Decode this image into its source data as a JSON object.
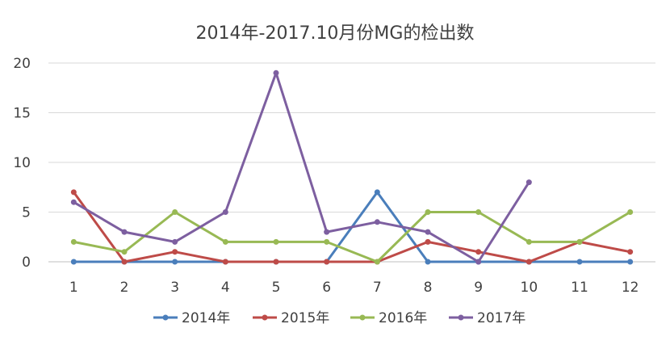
{
  "chart_data": {
    "type": "line",
    "title": "2014年-2017.10月份MG的检出数",
    "xlabel": "",
    "ylabel": "",
    "categories": [
      "1",
      "2",
      "3",
      "4",
      "5",
      "6",
      "7",
      "8",
      "9",
      "10",
      "11",
      "12"
    ],
    "ylim": [
      0,
      20
    ],
    "yticks": [
      0,
      5,
      10,
      15,
      20
    ],
    "grid": true,
    "legend_position": "bottom",
    "series": [
      {
        "name": "2014年",
        "color": "#4a7ebb",
        "values": [
          0,
          0,
          0,
          0,
          0,
          0,
          7,
          0,
          0,
          0,
          0,
          0
        ]
      },
      {
        "name": "2015年",
        "color": "#be4b48",
        "values": [
          7,
          0,
          1,
          0,
          0,
          0,
          0,
          2,
          1,
          0,
          2,
          1
        ]
      },
      {
        "name": "2016年",
        "color": "#98b954",
        "values": [
          2,
          1,
          5,
          2,
          2,
          2,
          0,
          5,
          5,
          2,
          2,
          5
        ]
      },
      {
        "name": "2017年",
        "color": "#7d5fa0",
        "values": [
          6,
          3,
          2,
          5,
          19,
          3,
          4,
          3,
          0,
          8,
          null,
          null
        ]
      }
    ]
  }
}
